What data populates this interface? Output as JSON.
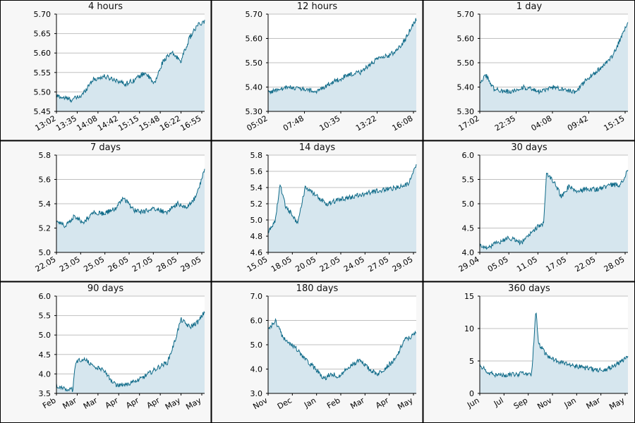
{
  "colors": {
    "line": "#0e6a88",
    "fill": "#d6e6ee",
    "grid": "#c0c0c0",
    "text": "#000000",
    "frame": "#000000"
  },
  "chart_data": [
    {
      "type": "area",
      "title": "4 hours",
      "yticks": [
        "5.45",
        "5.50",
        "5.55",
        "5.60",
        "5.65",
        "5.70"
      ],
      "ylim": [
        5.45,
        5.7
      ],
      "xticks": [
        "13:02",
        "13:35",
        "14:08",
        "14:42",
        "15:15",
        "15:48",
        "16:22",
        "16:55"
      ],
      "series": [
        {
          "x": [
            0,
            0.1,
            0.17,
            0.24,
            0.32,
            0.41,
            0.46,
            0.52,
            0.6,
            0.66,
            0.72,
            0.78,
            0.84,
            0.9,
            0.95,
            1
          ],
          "y": [
            5.49,
            5.48,
            5.49,
            5.53,
            5.54,
            5.53,
            5.52,
            5.53,
            5.55,
            5.52,
            5.58,
            5.6,
            5.58,
            5.64,
            5.67,
            5.68
          ]
        }
      ]
    },
    {
      "type": "area",
      "title": "12 hours",
      "yticks": [
        "5.30",
        "5.40",
        "5.50",
        "5.60",
        "5.70"
      ],
      "ylim": [
        5.3,
        5.7
      ],
      "xticks": [
        "05:02",
        "07:48",
        "10:35",
        "13:22",
        "16:08"
      ],
      "series": [
        {
          "x": [
            0,
            0.08,
            0.15,
            0.25,
            0.33,
            0.4,
            0.47,
            0.55,
            0.62,
            0.7,
            0.76,
            0.82,
            0.88,
            0.93,
            0.97,
            1
          ],
          "y": [
            5.38,
            5.39,
            5.4,
            5.39,
            5.38,
            5.41,
            5.43,
            5.45,
            5.46,
            5.5,
            5.52,
            5.53,
            5.56,
            5.6,
            5.65,
            5.68
          ]
        }
      ]
    },
    {
      "type": "area",
      "title": "1 day",
      "yticks": [
        "5.30",
        "5.40",
        "5.50",
        "5.60",
        "5.70"
      ],
      "ylim": [
        5.3,
        5.7
      ],
      "xticks": [
        "17:02",
        "22:35",
        "04:08",
        "09:42",
        "15:15"
      ],
      "series": [
        {
          "x": [
            0,
            0.04,
            0.1,
            0.2,
            0.3,
            0.4,
            0.5,
            0.58,
            0.65,
            0.72,
            0.78,
            0.84,
            0.9,
            0.95,
            1
          ],
          "y": [
            5.42,
            5.45,
            5.39,
            5.38,
            5.4,
            5.38,
            5.4,
            5.39,
            5.38,
            5.43,
            5.46,
            5.49,
            5.53,
            5.6,
            5.67
          ]
        }
      ]
    },
    {
      "type": "area",
      "title": "7 days",
      "yticks": [
        "5.0",
        "5.2",
        "5.4",
        "5.6",
        "5.8"
      ],
      "ylim": [
        5.0,
        5.8
      ],
      "xticks": [
        "22.05",
        "23.05",
        "25.05",
        "26.05",
        "27.05",
        "28.05",
        "29.05"
      ],
      "series": [
        {
          "x": [
            0,
            0.06,
            0.12,
            0.18,
            0.25,
            0.32,
            0.4,
            0.45,
            0.52,
            0.58,
            0.66,
            0.74,
            0.82,
            0.88,
            0.94,
            1
          ],
          "y": [
            5.25,
            5.22,
            5.3,
            5.24,
            5.33,
            5.32,
            5.36,
            5.45,
            5.35,
            5.33,
            5.36,
            5.33,
            5.4,
            5.37,
            5.45,
            5.68
          ]
        }
      ]
    },
    {
      "type": "area",
      "title": "14 days",
      "yticks": [
        "4.6",
        "4.8",
        "5.0",
        "5.2",
        "5.4",
        "5.6",
        "5.8"
      ],
      "ylim": [
        4.6,
        5.8
      ],
      "xticks": [
        "15.05",
        "18.05",
        "20.05",
        "22.05",
        "24.05",
        "27.05",
        "29.05"
      ],
      "series": [
        {
          "x": [
            0,
            0.05,
            0.08,
            0.12,
            0.16,
            0.2,
            0.25,
            0.32,
            0.4,
            0.48,
            0.56,
            0.64,
            0.72,
            0.8,
            0.88,
            0.95,
            1
          ],
          "y": [
            4.85,
            5.0,
            5.45,
            5.15,
            5.08,
            4.95,
            5.4,
            5.3,
            5.2,
            5.25,
            5.28,
            5.32,
            5.35,
            5.38,
            5.4,
            5.45,
            5.68
          ]
        }
      ]
    },
    {
      "type": "area",
      "title": "30 days",
      "yticks": [
        "4.0",
        "4.5",
        "5.0",
        "5.5",
        "6.0"
      ],
      "ylim": [
        4.0,
        6.0
      ],
      "xticks": [
        "29.04",
        "05.05",
        "11.05",
        "17.05",
        "22.05",
        "28.05"
      ],
      "series": [
        {
          "x": [
            0,
            0.05,
            0.12,
            0.2,
            0.28,
            0.35,
            0.4,
            0.43,
            0.45,
            0.5,
            0.55,
            0.6,
            0.66,
            0.72,
            0.8,
            0.88,
            0.95,
            1
          ],
          "y": [
            4.15,
            4.1,
            4.2,
            4.3,
            4.2,
            4.4,
            4.55,
            4.6,
            5.6,
            5.45,
            5.15,
            5.35,
            5.25,
            5.3,
            5.3,
            5.38,
            5.4,
            5.68
          ]
        }
      ]
    },
    {
      "type": "area",
      "title": "90 days",
      "yticks": [
        "3.5",
        "4.0",
        "4.5",
        "5.0",
        "5.5",
        "6.0"
      ],
      "ylim": [
        3.5,
        6.0
      ],
      "xticks": [
        "Feb",
        "Mar",
        "Mar",
        "Apr",
        "Apr",
        "Apr",
        "May",
        "May"
      ],
      "series": [
        {
          "x": [
            0,
            0.06,
            0.11,
            0.13,
            0.18,
            0.25,
            0.32,
            0.4,
            0.48,
            0.56,
            0.64,
            0.7,
            0.75,
            0.8,
            0.84,
            0.9,
            0.96,
            1
          ],
          "y": [
            3.7,
            3.6,
            3.6,
            4.3,
            4.4,
            4.2,
            4.1,
            3.7,
            3.75,
            3.85,
            4.05,
            4.2,
            4.3,
            4.85,
            5.4,
            5.2,
            5.35,
            5.6
          ]
        }
      ]
    },
    {
      "type": "area",
      "title": "180 days",
      "yticks": [
        "3.0",
        "4.0",
        "5.0",
        "6.0",
        "7.0"
      ],
      "ylim": [
        3.0,
        7.0
      ],
      "xticks": [
        "Nov",
        "Dec",
        "Jan",
        "Feb",
        "Mar",
        "Apr",
        "May"
      ],
      "series": [
        {
          "x": [
            0,
            0.05,
            0.1,
            0.18,
            0.25,
            0.32,
            0.38,
            0.42,
            0.48,
            0.55,
            0.62,
            0.68,
            0.74,
            0.8,
            0.86,
            0.92,
            0.96,
            1
          ],
          "y": [
            5.6,
            6.0,
            5.3,
            4.9,
            4.4,
            4.0,
            3.6,
            3.8,
            3.7,
            4.1,
            4.4,
            4.0,
            3.8,
            4.1,
            4.4,
            5.2,
            5.3,
            5.5
          ]
        }
      ]
    },
    {
      "type": "area",
      "title": "360 days",
      "yticks": [
        "0",
        "5",
        "10",
        "15"
      ],
      "ylim": [
        0,
        15
      ],
      "xticks": [
        "Jun",
        "Jul",
        "Sep",
        "Nov",
        "Jan",
        "Mar",
        "May"
      ],
      "series": [
        {
          "x": [
            0,
            0.05,
            0.12,
            0.2,
            0.28,
            0.35,
            0.38,
            0.39,
            0.4,
            0.45,
            0.52,
            0.6,
            0.7,
            0.78,
            0.86,
            0.93,
            1
          ],
          "y": [
            4.5,
            3.2,
            2.8,
            2.9,
            3.0,
            3.0,
            13.0,
            9.0,
            7.5,
            6.0,
            5.0,
            4.5,
            4.0,
            3.6,
            3.8,
            4.5,
            5.6
          ]
        }
      ]
    }
  ]
}
